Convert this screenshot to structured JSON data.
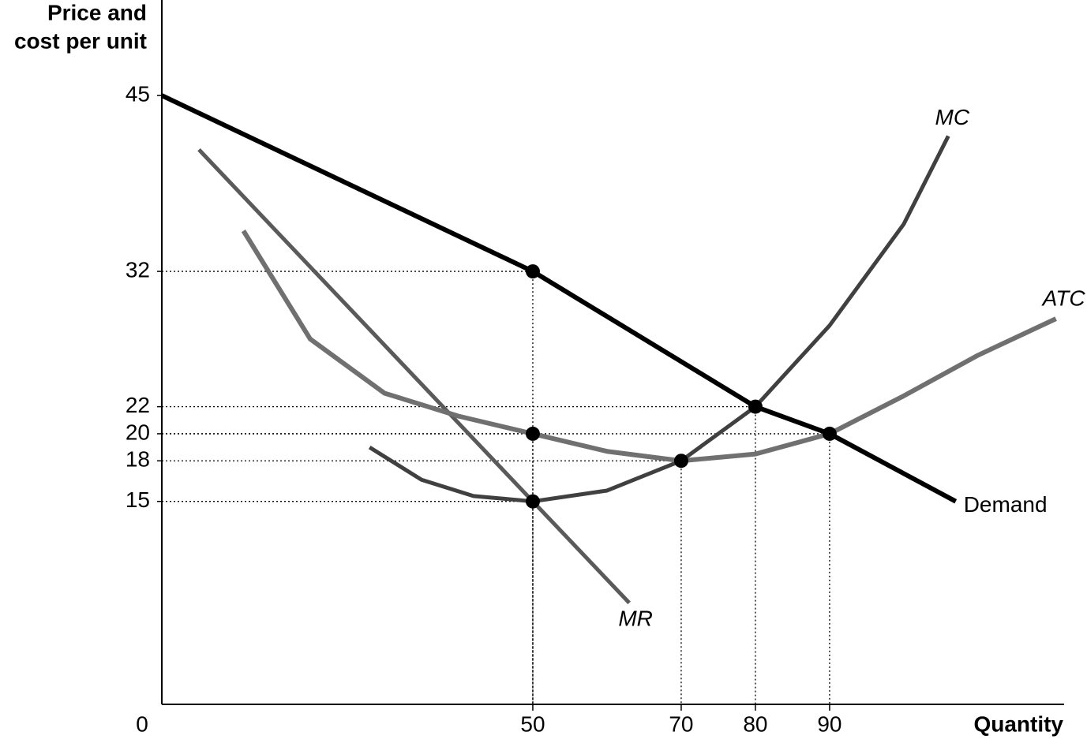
{
  "chart_data": {
    "type": "line",
    "ylabel": [
      "Price and",
      "cost per unit"
    ],
    "xlabel": "Quantity",
    "xlim": [
      0,
      121.5
    ],
    "ylim": [
      0,
      52
    ],
    "xticks": [
      0,
      50,
      70,
      80,
      90
    ],
    "yticks": [
      15,
      18,
      20,
      22,
      32,
      45
    ],
    "series": [
      {
        "name": "Demand",
        "color": "#000000",
        "x": [
          0,
          50,
          80,
          90,
          107
        ],
        "values": [
          45,
          32,
          22,
          20,
          15
        ]
      },
      {
        "name": "MR",
        "color": "#5a5a5a",
        "x": [
          5,
          50,
          63
        ],
        "values": [
          41,
          15,
          7.5
        ]
      },
      {
        "name": "MC",
        "color": "#404040",
        "x": [
          28,
          35,
          42,
          50,
          60,
          70,
          80,
          90,
          100,
          106
        ],
        "values": [
          19,
          16.6,
          15.4,
          15,
          15.8,
          18,
          22,
          28,
          35.5,
          42
        ]
      },
      {
        "name": "ATC",
        "color": "#707070",
        "x": [
          11,
          20,
          30,
          40,
          50,
          60,
          70,
          80,
          90,
          100,
          110,
          120.5
        ],
        "values": [
          35,
          27,
          23,
          21.3,
          20,
          18.7,
          18,
          18.5,
          20,
          22.8,
          25.8,
          28.5
        ]
      }
    ],
    "points": [
      {
        "x": 50,
        "y": 32
      },
      {
        "x": 50,
        "y": 20
      },
      {
        "x": 50,
        "y": 15
      },
      {
        "x": 70,
        "y": 18
      },
      {
        "x": 80,
        "y": 22
      },
      {
        "x": 90,
        "y": 20
      }
    ]
  }
}
